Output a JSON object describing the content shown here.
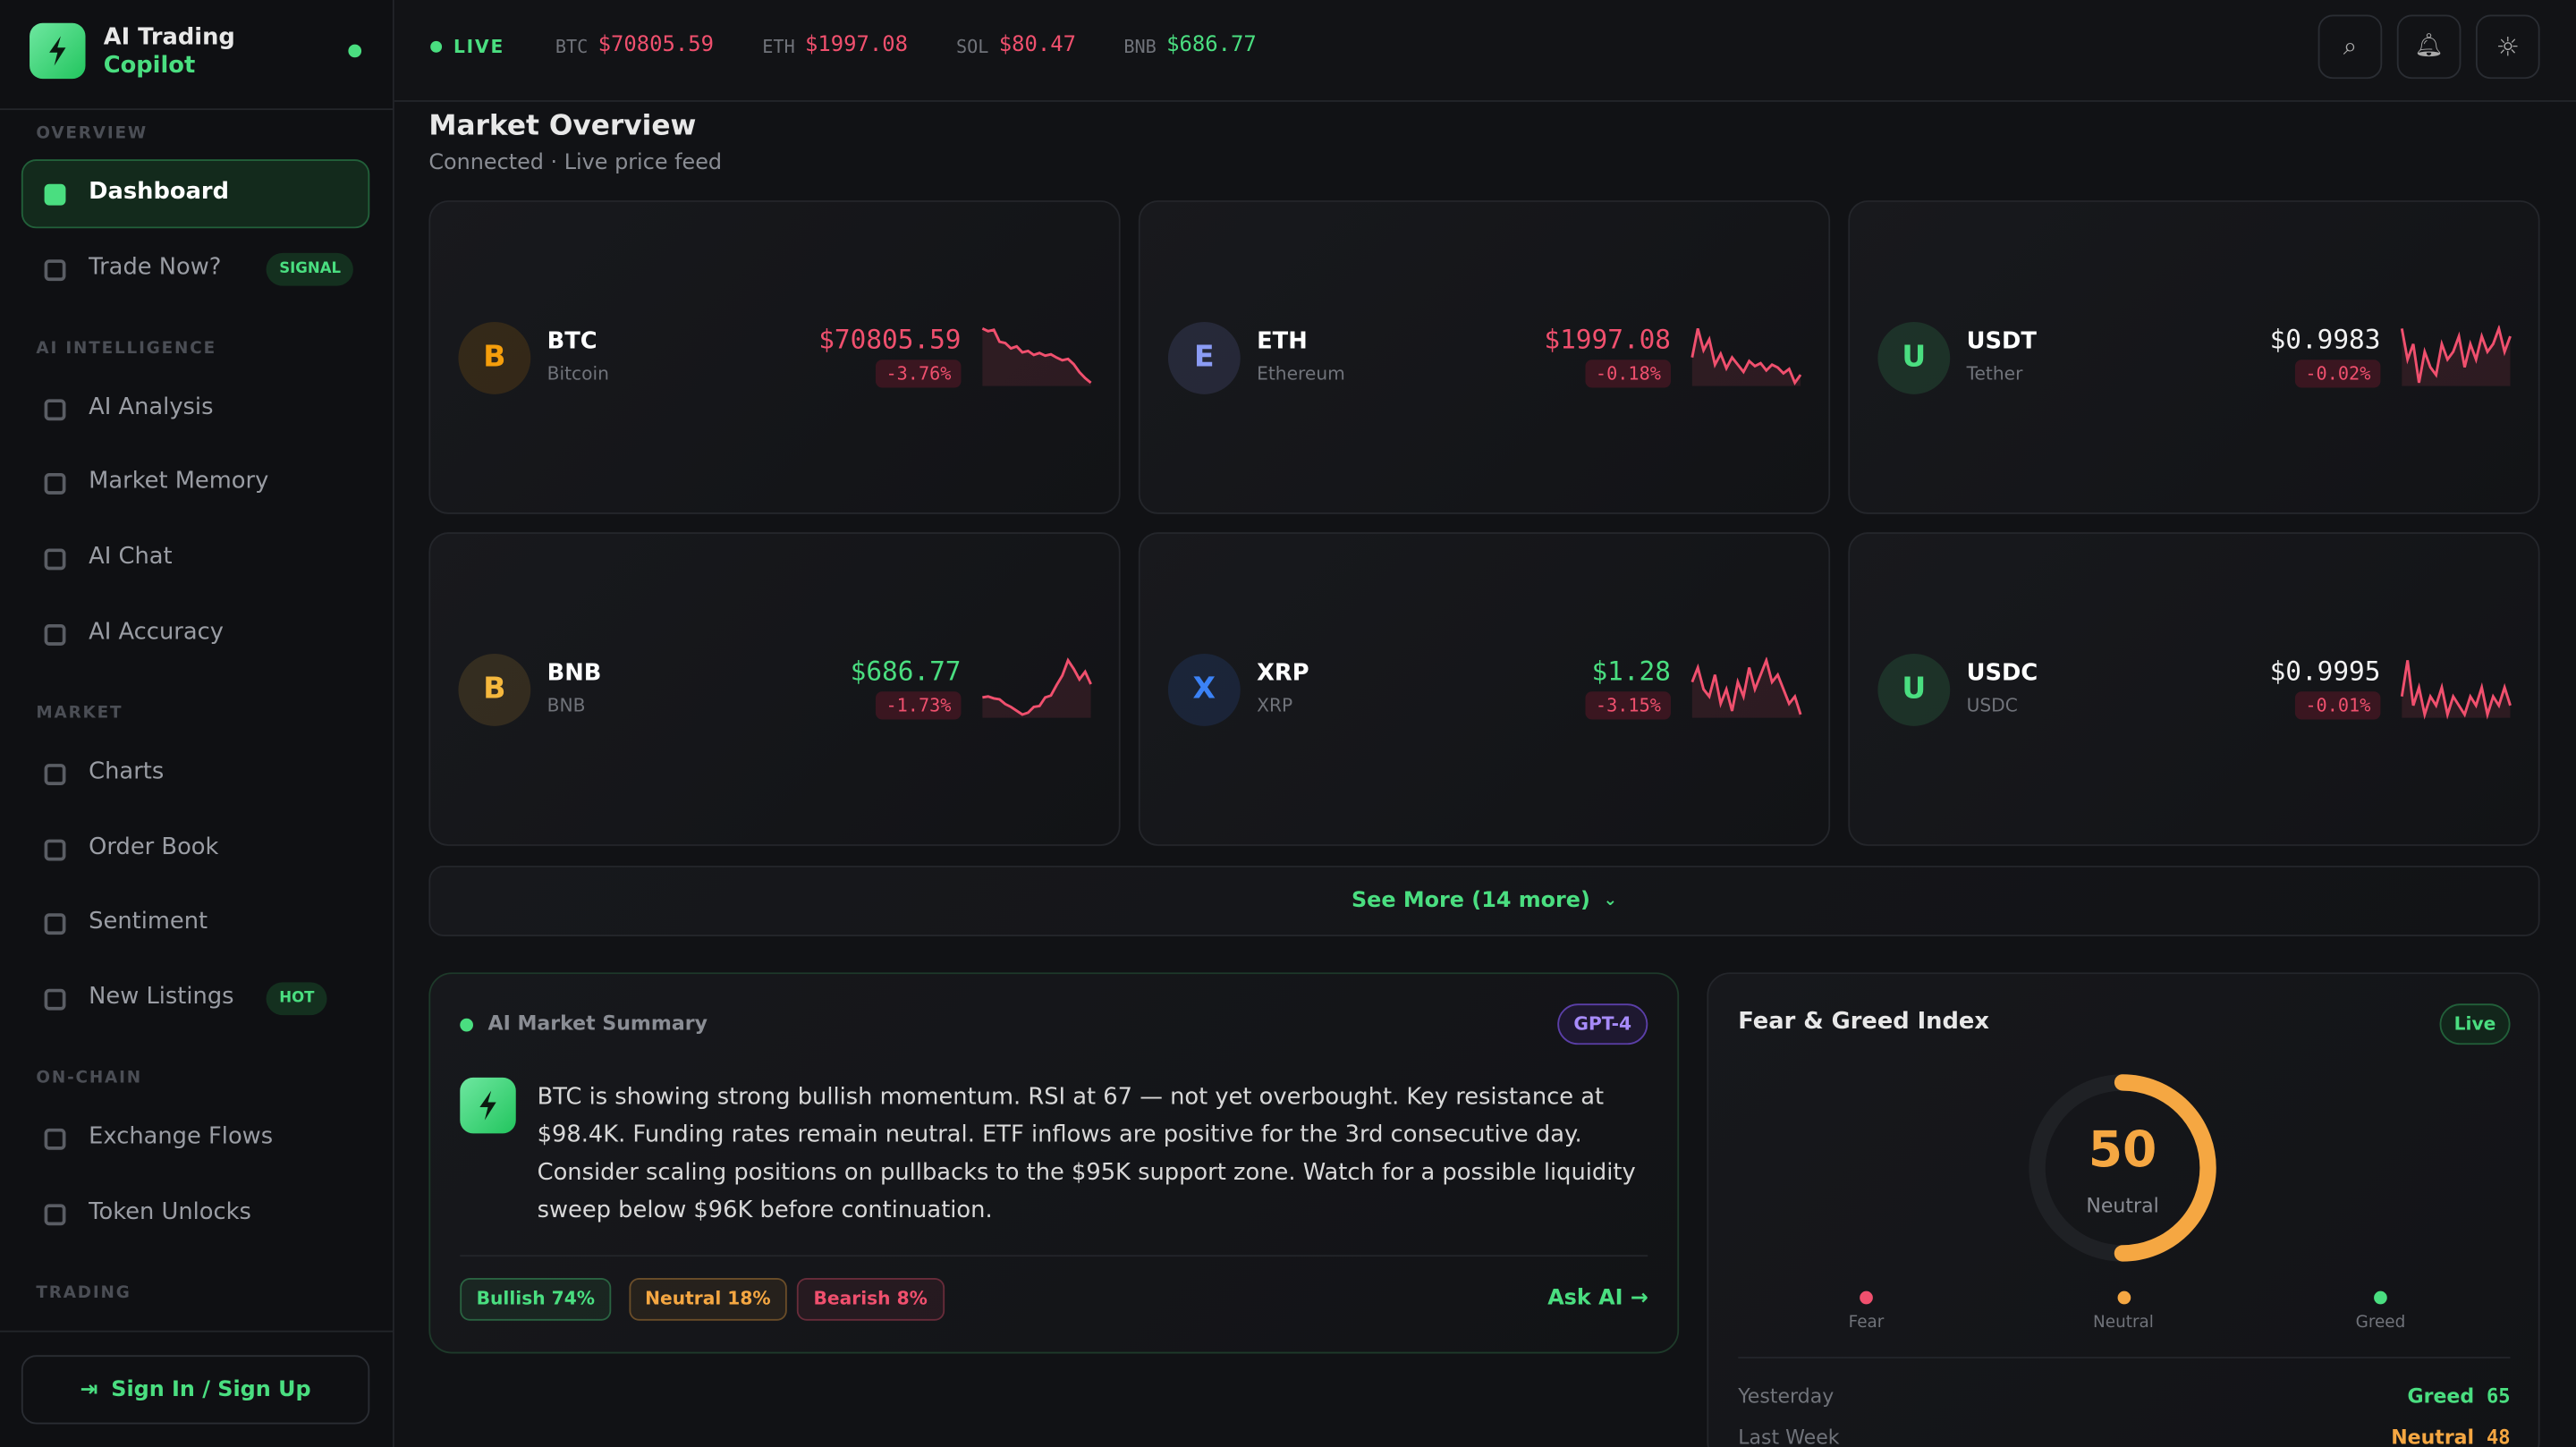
{
  "brand": {
    "title": "AI Trading",
    "subtitle": "Copilot"
  },
  "nav": [
    {
      "section": "OVERVIEW",
      "items": [
        {
          "label": "Dashboard"
        },
        {
          "label": "Trade Now?",
          "badge": "SIGNAL"
        }
      ]
    },
    {
      "section": "AI INTELLIGENCE",
      "items": [
        {
          "label": "AI Analysis"
        },
        {
          "label": "Market Memory"
        },
        {
          "label": "AI Chat"
        },
        {
          "label": "AI Accuracy"
        }
      ]
    },
    {
      "section": "MARKET",
      "items": [
        {
          "label": "Charts"
        },
        {
          "label": "Order Book"
        },
        {
          "label": "Sentiment"
        },
        {
          "label": "New Listings",
          "badge": "HOT"
        }
      ]
    },
    {
      "section": "ON-CHAIN",
      "items": [
        {
          "label": "Exchange Flows"
        },
        {
          "label": "Token Unlocks"
        }
      ]
    },
    {
      "section": "TRADING",
      "items": []
    }
  ],
  "sign_in": "Sign In / Sign Up",
  "ticker": {
    "live": "LIVE",
    "items": [
      {
        "symbol": "BTC",
        "price": "$70805.59",
        "color": "#f0506e"
      },
      {
        "symbol": "ETH",
        "price": "$1997.08",
        "color": "#f0506e"
      },
      {
        "symbol": "SOL",
        "price": "$80.47",
        "color": "#f0506e"
      },
      {
        "symbol": "BNB",
        "price": "$686.77",
        "color": "#4ade80"
      }
    ]
  },
  "overview": {
    "title": "Market Overview",
    "subtitle": "Connected · Live price feed"
  },
  "coins": [
    {
      "letter": "B",
      "symbol": "BTC",
      "name": "Bitcoin",
      "price": "$70805.59",
      "change": "-3.76%",
      "color": "#f0506e",
      "icon": "#f59e0b",
      "spark": [
        9,
        8.6,
        8.8,
        7,
        6.8,
        6,
        6.3,
        5.4,
        5.6,
        5,
        5.3,
        4.9,
        5.1,
        4.6,
        4.2,
        4.4,
        3.6,
        2.4,
        1.5,
        0.8
      ]
    },
    {
      "letter": "E",
      "symbol": "ETH",
      "name": "Ethereum",
      "price": "$1997.08",
      "change": "-0.18%",
      "color": "#f0506e",
      "icon": "#8b9cf5",
      "spark": [
        5,
        9,
        6,
        7.5,
        4,
        5.5,
        3.5,
        5,
        4,
        3,
        4.5,
        3.8,
        4.2,
        3.2,
        4,
        3.6,
        2.8,
        3.4,
        1.5,
        2.6
      ]
    },
    {
      "letter": "U",
      "symbol": "USDT",
      "name": "Tether",
      "price": "$0.9983",
      "change": "-0.02%",
      "color": "#f2f2f2",
      "icon": "#4ade80",
      "spark": [
        8,
        4,
        6,
        1,
        5,
        3,
        2,
        6,
        4,
        5,
        7,
        3,
        6,
        4,
        7,
        5,
        6,
        8,
        5,
        7
      ]
    },
    {
      "letter": "B",
      "symbol": "BNB",
      "name": "BNB",
      "price": "$686.77",
      "change": "-1.73%",
      "color": "#4ade80",
      "icon": "#f5b83d",
      "spark": [
        4.5,
        4.6,
        4.4,
        4.3,
        3.8,
        3.5,
        3.1,
        2.7,
        2.9,
        3.5,
        3.6,
        4.5,
        4.7,
        5.8,
        6.8,
        8.4,
        7.5,
        6.4,
        7.2,
        5.9
      ]
    },
    {
      "letter": "X",
      "symbol": "XRP",
      "name": "XRP",
      "price": "$1.28",
      "change": "-3.15%",
      "color": "#4ade80",
      "icon": "#3b82f6",
      "spark": [
        6,
        8,
        5,
        4,
        7,
        3,
        5,
        2,
        6,
        4,
        8,
        5,
        7,
        9,
        6,
        7,
        5,
        3,
        4,
        1.5
      ]
    },
    {
      "letter": "U",
      "symbol": "USDC",
      "name": "USDC",
      "price": "$0.9995",
      "change": "-0.01%",
      "color": "#f2f2f2",
      "icon": "#4ade80",
      "spark": [
        5,
        9,
        4,
        6,
        3,
        5,
        4,
        6,
        3,
        5,
        4,
        3,
        5,
        4,
        6,
        3,
        5,
        4,
        6,
        4
      ]
    }
  ],
  "see_more": "See More (14 more)",
  "summary": {
    "title": "AI Market Summary",
    "model": "GPT-4",
    "text": "BTC is showing strong bullish momentum. RSI at 67 — not yet overbought. Key resistance at $98.4K. Funding rates remain neutral. ETF inflows are positive for the 3rd consecutive day. Consider scaling positions on pullbacks to the $95K support zone. Watch for a possible liquidity sweep below $96K before continuation.",
    "tags": [
      {
        "label": "Bullish 74%",
        "color": "#4ade80"
      },
      {
        "label": "Neutral 18%",
        "color": "#f5a742"
      },
      {
        "label": "Bearish 8%",
        "color": "#f0506e"
      }
    ],
    "ask": "Ask AI"
  },
  "fear_greed": {
    "title": "Fear & Greed Index",
    "badge": "Live",
    "value": 50,
    "label": "Neutral",
    "scale": [
      {
        "label": "Fear",
        "color": "#f0506e"
      },
      {
        "label": "Neutral",
        "color": "#f5a742"
      },
      {
        "label": "Greed",
        "color": "#4ade80"
      }
    ],
    "history": [
      {
        "period": "Yesterday",
        "label": "Greed",
        "value": 65,
        "color": "#4ade80"
      },
      {
        "period": "Last Week",
        "label": "Neutral",
        "value": 48,
        "color": "#f5a742"
      }
    ]
  }
}
